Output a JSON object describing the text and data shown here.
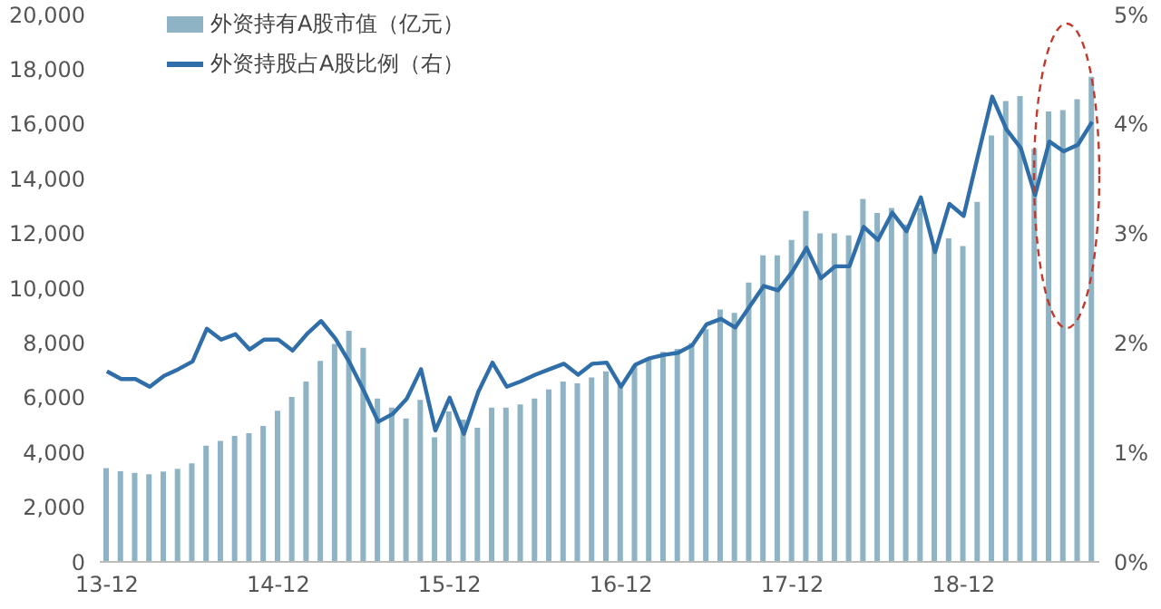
{
  "chart_data": {
    "type": "bar",
    "categories": [
      "13-12",
      null,
      null,
      null,
      null,
      null,
      null,
      null,
      null,
      null,
      null,
      null,
      "14-12",
      null,
      null,
      null,
      null,
      null,
      null,
      null,
      null,
      null,
      null,
      null,
      "15-12",
      null,
      null,
      null,
      null,
      null,
      null,
      null,
      null,
      null,
      null,
      null,
      "16-12",
      null,
      null,
      null,
      null,
      null,
      null,
      null,
      null,
      null,
      null,
      null,
      "17-12",
      null,
      null,
      null,
      null,
      null,
      null,
      null,
      null,
      null,
      null,
      null,
      "18-12",
      null,
      null,
      null,
      null,
      null,
      null,
      null,
      null,
      null
    ],
    "series": [
      {
        "name": "外资持有A股市值（亿元）",
        "color": "#8db3c5",
        "values": [
          3425,
          3315,
          3250,
          3200,
          3300,
          3400,
          3600,
          4250,
          4420,
          4600,
          4700,
          4970,
          5525,
          6030,
          6590,
          7340,
          7960,
          8440,
          7820,
          5970,
          5640,
          5240,
          5920,
          4550,
          5500,
          5200,
          4900,
          5640,
          5640,
          5750,
          5970,
          6300,
          6590,
          6520,
          6740,
          6960,
          6500,
          7180,
          7400,
          7670,
          7780,
          8000,
          8500,
          9220,
          9100,
          10210,
          11200,
          11200,
          11760,
          12820,
          12000,
          12000,
          11930,
          13260,
          12750,
          12930,
          12330,
          12930,
          11490,
          11820,
          11540,
          13150,
          15580,
          16840,
          17020,
          15090,
          16460,
          16510,
          16900,
          17720
        ]
      },
      {
        "name": "外资持股占A股比例（右）",
        "type": "line",
        "axis": "y2",
        "color": "#2f6ea8",
        "values": [
          1.74,
          1.67,
          1.67,
          1.6,
          1.7,
          1.76,
          1.83,
          2.13,
          2.03,
          2.08,
          1.94,
          2.03,
          2.03,
          1.93,
          2.08,
          2.2,
          2.04,
          1.82,
          1.56,
          1.28,
          1.35,
          1.49,
          1.76,
          1.2,
          1.5,
          1.17,
          1.55,
          1.82,
          1.6,
          1.65,
          1.71,
          1.76,
          1.81,
          1.71,
          1.81,
          1.82,
          1.6,
          1.8,
          1.86,
          1.89,
          1.91,
          1.98,
          2.17,
          2.22,
          2.14,
          2.33,
          2.52,
          2.48,
          2.65,
          2.87,
          2.59,
          2.7,
          2.7,
          3.06,
          2.94,
          3.19,
          3.02,
          3.33,
          2.83,
          3.27,
          3.16,
          3.71,
          4.25,
          3.95,
          3.78,
          3.35,
          3.84,
          3.75,
          3.81,
          4.02
        ]
      }
    ],
    "ylim": [
      0,
      20000
    ],
    "yticks": [
      {
        "value": 0,
        "label": "0"
      },
      {
        "value": 2000,
        "label": "2,000"
      },
      {
        "value": 4000,
        "label": "4,000"
      },
      {
        "value": 6000,
        "label": "6,000"
      },
      {
        "value": 8000,
        "label": "8,000"
      },
      {
        "value": 10000,
        "label": "10,000"
      },
      {
        "value": 12000,
        "label": "12,000"
      },
      {
        "value": 14000,
        "label": "14,000"
      },
      {
        "value": 16000,
        "label": "16,000"
      },
      {
        "value": 18000,
        "label": "18,000"
      },
      {
        "value": 20000,
        "label": "20,000"
      }
    ],
    "y2lim": [
      0,
      5
    ],
    "y2ticks": [
      {
        "value": 0,
        "label": "0%"
      },
      {
        "value": 1,
        "label": "1%"
      },
      {
        "value": 2,
        "label": "2%"
      },
      {
        "value": 3,
        "label": "3%"
      },
      {
        "value": 4,
        "label": "4%"
      },
      {
        "value": 5,
        "label": "5%"
      }
    ],
    "grid": false,
    "legend": "top left",
    "marker": "none"
  }
}
